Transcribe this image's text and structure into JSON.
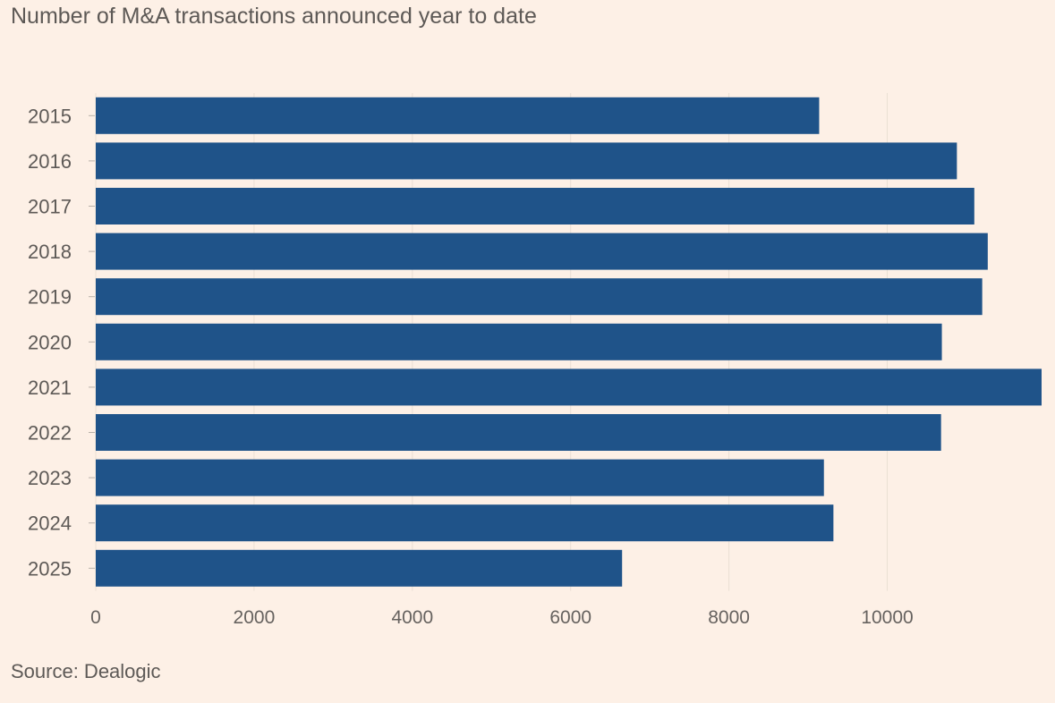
{
  "chart_data": {
    "type": "bar",
    "orientation": "horizontal",
    "title": "Number of M&A transactions announced year to date",
    "source": "Source: Dealogic",
    "categories": [
      "2015",
      "2016",
      "2017",
      "2018",
      "2019",
      "2020",
      "2021",
      "2022",
      "2023",
      "2024",
      "2025"
    ],
    "values": [
      9140,
      10880,
      11100,
      11270,
      11200,
      10690,
      11950,
      10680,
      9200,
      9320,
      6650
    ],
    "xlim": [
      0,
      11950
    ],
    "xticks": [
      0,
      2000,
      4000,
      6000,
      8000,
      10000
    ],
    "xtick_labels": [
      "0",
      "2000",
      "4000",
      "6000",
      "8000",
      "10000"
    ],
    "color": "#1f5389",
    "background": "#fdf0e6",
    "grid": true
  }
}
